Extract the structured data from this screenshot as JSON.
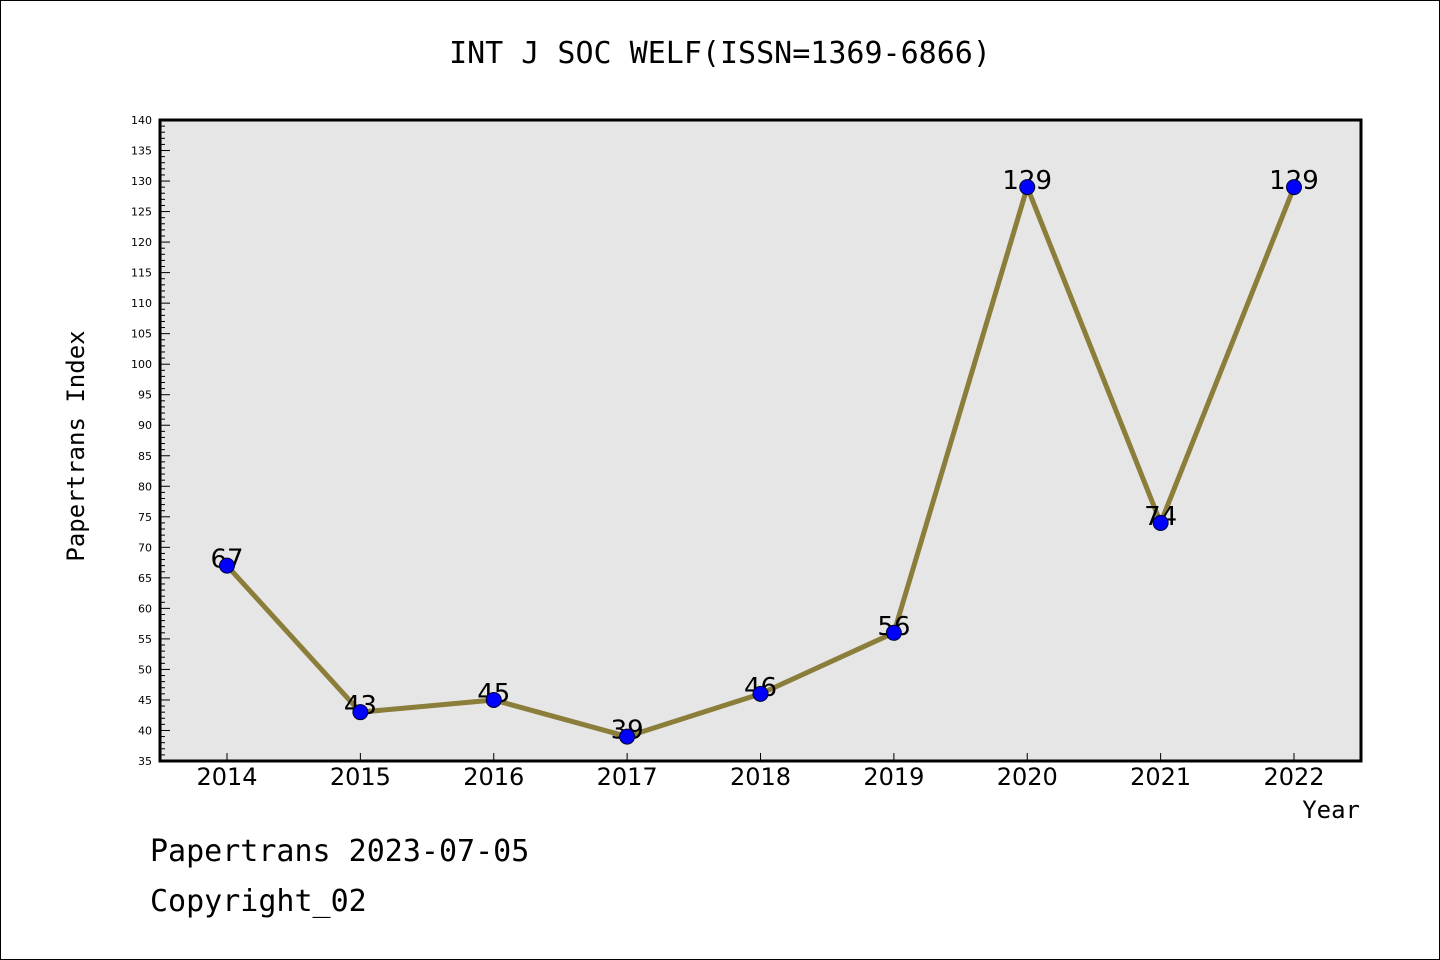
{
  "chart_data": {
    "type": "line",
    "title": "INT J SOC WELF(ISSN=1369-6866)",
    "xlabel": "Year",
    "ylabel": "Papertrans Index",
    "categories": [
      "2014",
      "2015",
      "2016",
      "2017",
      "2018",
      "2019",
      "2020",
      "2021",
      "2022"
    ],
    "series": [
      {
        "values": [
          67,
          43,
          45,
          39,
          46,
          56,
          129,
          74,
          129
        ],
        "data_labels": [
          "67",
          "43",
          "45",
          "39",
          "46",
          "56",
          "129",
          "74",
          "129"
        ]
      }
    ],
    "ylim": [
      35,
      140
    ],
    "y_major_step": 5,
    "y_minor_step": 1,
    "y_tick_labels": [
      "35",
      "40",
      "45",
      "50",
      "55",
      "60",
      "65",
      "70",
      "75",
      "80",
      "85",
      "90",
      "95",
      "100",
      "105",
      "110",
      "115",
      "120",
      "125",
      "130",
      "135",
      "140"
    ],
    "grid": false,
    "legend": "none",
    "colors": {
      "line": "#8b7d3a",
      "marker": "#0000ff",
      "plot_background": "#e6e6e6",
      "axis": "#000000"
    }
  },
  "footer": {
    "date_line": "Papertrans 2023-07-05",
    "copyright_line": "Copyright_02"
  }
}
